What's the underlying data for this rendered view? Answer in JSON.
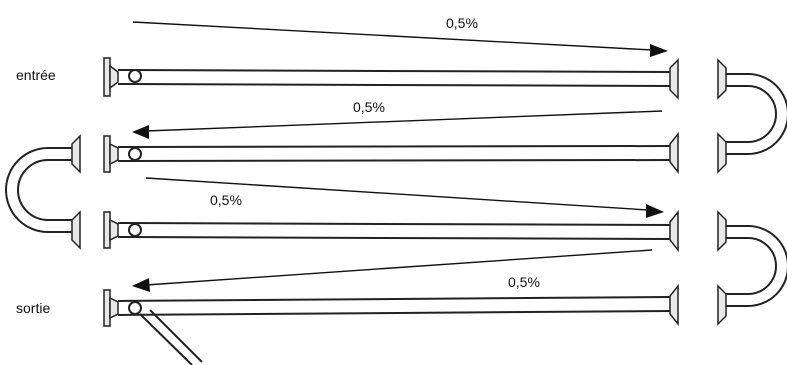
{
  "labels": {
    "inlet": "entrée",
    "outlet": "sortie"
  },
  "slopes": [
    {
      "text": "0,5%"
    },
    {
      "text": "0,5%"
    },
    {
      "text": "0,5%"
    },
    {
      "text": "0,5%"
    }
  ],
  "pipe_count": 4,
  "elbow_count": 3,
  "colors": {
    "line": "#222222",
    "flange_fill": "#e8e8e8"
  }
}
